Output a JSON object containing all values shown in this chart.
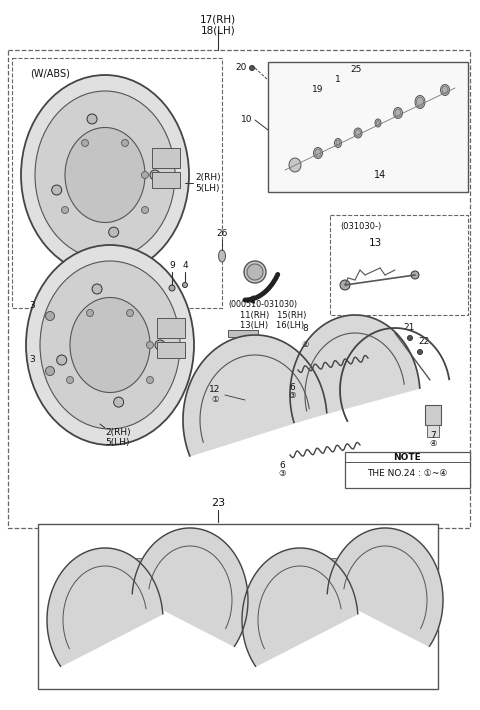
{
  "bg_color": "#ffffff",
  "line_color": "#333333",
  "fig_width": 4.8,
  "fig_height": 7.1,
  "labels": {
    "top_label": "17(RH)\n18(LH)",
    "wabs_label": "(W/ABS)",
    "part2rh_top": "2(RH)\n5(LH)",
    "part2rh_bot": "2(RH)\n5(LH)",
    "part9": "9",
    "part4": "4",
    "part3a": "3",
    "part3b": "3",
    "part26": "26",
    "part20": "20",
    "part10": "10",
    "part25": "25",
    "part1": "1",
    "part19": "19",
    "part14": "14",
    "part13box_title": "(031030-)",
    "part13box_num": "13",
    "part11": "(000510-031030)\n11(RH)   15(RH)\n13(LH)   16(LH)",
    "part8": "8",
    "part8_circle": "②",
    "part12": "12",
    "part12_circle": "①",
    "part6a": "6",
    "part6a_circle": "③",
    "part6b": "6",
    "part6b_circle": "③",
    "part21": "21",
    "part22": "22",
    "part7": "7",
    "part7_circle": "④",
    "note_title": "NOTE",
    "note_body": "THE NO.24 : ①~④",
    "part23": "23"
  }
}
